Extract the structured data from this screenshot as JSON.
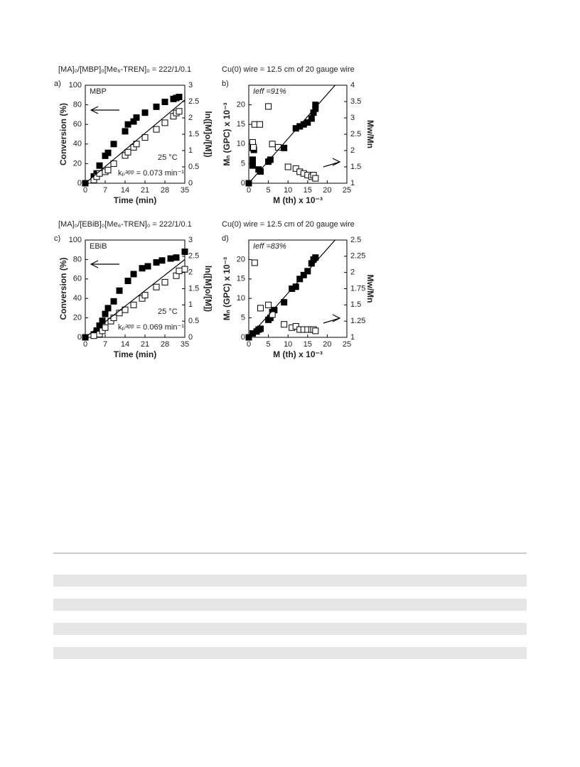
{
  "headers": [
    "[MA]₀/[MBP]₀[Me₆-TREN]₀ = 222/1/0.1",
    "Cu(0) wire = 12.5 cm of 20 gauge wire",
    "[MA]₀/[EBiB]₀[Me₆-TREN]₀ = 222/1/0.1",
    "Cu(0) wire = 12.5 cm of 20 gauge wire"
  ],
  "chart_data": [
    {
      "type": "scatter",
      "label": "a)",
      "x_label": "Time (min)",
      "y_label": "Conversion (%)",
      "y2_label": "ln([M]o/[M])",
      "xlim": [
        0,
        35
      ],
      "xticks": [
        0,
        7,
        14,
        21,
        28,
        35
      ],
      "ylim": [
        0,
        100
      ],
      "yticks": [
        0,
        20,
        40,
        60,
        80,
        100
      ],
      "y2lim": [
        0,
        3
      ],
      "y2ticks": [
        0,
        0.5,
        1,
        1.5,
        2,
        2.5,
        3
      ],
      "annotations": [
        "MBP",
        "25 °C",
        "kₚᵃᵖᵖ = 0.073 min⁻¹"
      ],
      "series": [
        {
          "marker": "filled",
          "color": "#000000",
          "x": [
            0,
            3,
            4,
            5,
            7,
            8,
            10,
            14,
            15,
            17,
            18,
            21,
            25,
            28,
            31,
            32,
            33
          ],
          "values": [
            0,
            7,
            10,
            18,
            28,
            31,
            40,
            53,
            60,
            63,
            67,
            72,
            78,
            83,
            86,
            87,
            88
          ]
        },
        {
          "marker": "open",
          "axis": "y2",
          "color": "#000000",
          "x": [
            3,
            4,
            5,
            7,
            8,
            10,
            14,
            15,
            17,
            18,
            21,
            25,
            28,
            31,
            32,
            33
          ],
          "values": [
            0.1,
            0.2,
            0.3,
            0.35,
            0.4,
            0.6,
            0.85,
            0.95,
            1.1,
            1.2,
            1.4,
            1.65,
            1.85,
            2.05,
            2.15,
            2.2
          ]
        },
        {
          "marker": "line",
          "axis": "y2",
          "color": "#000000",
          "x": [
            0,
            35
          ],
          "values": [
            0,
            2.55
          ]
        }
      ]
    },
    {
      "type": "scatter",
      "label": "b)",
      "x_label": "M (th) x 10⁻³",
      "y_label": "Mₙ (GPC) x 10⁻³",
      "y2_label": "Mw/Mn",
      "xlim": [
        0,
        25
      ],
      "xticks": [
        0,
        5,
        10,
        15,
        20,
        25
      ],
      "ylim": [
        0,
        25
      ],
      "yticks": [
        0,
        5,
        10,
        15,
        20
      ],
      "y2lim": [
        1,
        4
      ],
      "y2ticks": [
        1,
        1.5,
        2,
        2.5,
        3,
        3.5,
        4
      ],
      "annotations": [
        "Ieff =91%"
      ],
      "series": [
        {
          "marker": "filled",
          "color": "#000000",
          "x": [
            0,
            1,
            1,
            1,
            1.3,
            2.5,
            3,
            5,
            5.5,
            9,
            12,
            13,
            14,
            15,
            16,
            16.5,
            17,
            17
          ],
          "values": [
            0,
            4.5,
            6,
            9,
            8.5,
            3.5,
            3,
            5.5,
            6,
            9,
            14,
            14.5,
            15,
            15.5,
            16.5,
            18,
            19,
            20
          ]
        },
        {
          "marker": "open",
          "axis": "y2",
          "color": "#000000",
          "x": [
            1.5,
            1,
            1.2,
            2.8,
            5,
            6,
            7.5,
            10,
            12,
            13,
            14,
            15,
            16,
            16.5,
            17
          ],
          "values": [
            2.8,
            2.25,
            2.1,
            2.8,
            3.35,
            2.2,
            2.1,
            1.5,
            1.45,
            1.35,
            1.3,
            1.25,
            1.2,
            1.25,
            1.15
          ]
        },
        {
          "marker": "line",
          "color": "#000000",
          "x": [
            0,
            22
          ],
          "values": [
            0,
            25
          ]
        }
      ]
    },
    {
      "type": "scatter",
      "label": "c)",
      "x_label": "Time (min)",
      "y_label": "Conversion (%)",
      "y2_label": "ln([M]o/[M])",
      "xlim": [
        0,
        35
      ],
      "xticks": [
        0,
        7,
        14,
        21,
        28,
        35
      ],
      "ylim": [
        0,
        100
      ],
      "yticks": [
        0,
        20,
        40,
        60,
        80,
        100
      ],
      "y2lim": [
        0,
        3
      ],
      "y2ticks": [
        0,
        0.5,
        1,
        1.5,
        2,
        2.5,
        3
      ],
      "annotations": [
        "EBiB",
        "25 °C",
        "kₚᵃᵖᵖ = 0.069 min⁻¹"
      ],
      "series": [
        {
          "marker": "filled",
          "color": "#000000",
          "x": [
            0,
            3,
            4,
            5,
            6,
            7,
            8,
            10,
            12,
            15,
            17,
            20,
            22,
            25,
            27,
            30,
            32,
            35
          ],
          "values": [
            0,
            3,
            7,
            12,
            17,
            24,
            30,
            37,
            48,
            58,
            65,
            71,
            73,
            77,
            79,
            81,
            82,
            88
          ]
        },
        {
          "marker": "open",
          "axis": "y2",
          "color": "#000000",
          "x": [
            3,
            5,
            6,
            7,
            9,
            10,
            12,
            14,
            17,
            20,
            21,
            25,
            28,
            32,
            33,
            35
          ],
          "values": [
            0.05,
            0.1,
            0.2,
            0.3,
            0.5,
            0.6,
            0.75,
            0.85,
            1,
            1.2,
            1.3,
            1.55,
            1.7,
            1.9,
            2.05,
            2.1
          ]
        },
        {
          "marker": "line",
          "axis": "y2",
          "color": "#000000",
          "x": [
            0,
            35
          ],
          "values": [
            0,
            2.4
          ]
        }
      ]
    },
    {
      "type": "scatter",
      "label": "d)",
      "x_label": "M (th) x 10⁻³",
      "y_label": "Mₙ (GPC) x 10⁻³",
      "y2_label": "Mw/Mn",
      "xlim": [
        0,
        25
      ],
      "xticks": [
        0,
        5,
        10,
        15,
        20,
        25
      ],
      "ylim": [
        0,
        25
      ],
      "yticks": [
        0,
        5,
        10,
        15,
        20
      ],
      "y2lim": [
        1,
        2.5
      ],
      "y2ticks": [
        1,
        1.25,
        1.5,
        1.75,
        2,
        2.25,
        2.5
      ],
      "annotations": [
        "Ieff =83%"
      ],
      "series": [
        {
          "marker": "filled",
          "color": "#000000",
          "x": [
            0,
            1,
            2,
            2.5,
            3,
            5,
            5.5,
            6,
            6.5,
            9,
            11,
            12,
            13,
            14,
            15,
            16,
            16.5,
            17
          ],
          "values": [
            0,
            1,
            1.5,
            2,
            2.2,
            4.5,
            5,
            6.5,
            7,
            9,
            12.5,
            13,
            15,
            16,
            17,
            19,
            20,
            20.5
          ]
        },
        {
          "marker": "open",
          "axis": "y2",
          "color": "#000000",
          "x": [
            1.5,
            3,
            5,
            6,
            9,
            11,
            12,
            13,
            14,
            15,
            16,
            16.5,
            17
          ],
          "values": [
            2.15,
            1.45,
            1.5,
            1.35,
            1.2,
            1.15,
            1.17,
            1.12,
            1.12,
            1.12,
            1.12,
            1.12,
            1.1
          ]
        },
        {
          "marker": "line",
          "color": "#000000",
          "x": [
            0,
            22
          ],
          "values": [
            0,
            25
          ]
        }
      ]
    }
  ]
}
